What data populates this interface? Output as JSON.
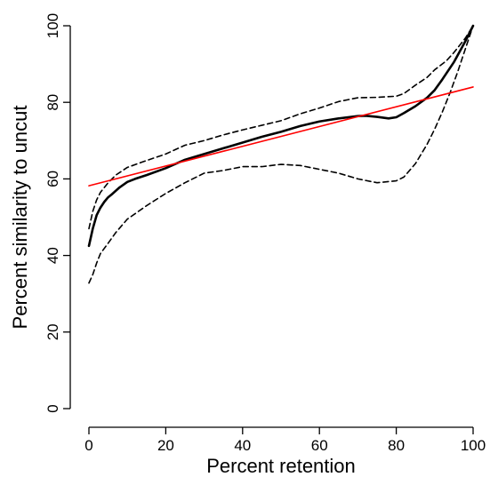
{
  "chart_data": {
    "type": "line",
    "title": "",
    "xlabel": "Percent retention",
    "ylabel": "Percent similarity to uncut",
    "xlim": [
      0,
      100
    ],
    "ylim": [
      0,
      100
    ],
    "xticks": [
      0,
      20,
      40,
      60,
      80,
      100
    ],
    "yticks": [
      0,
      20,
      40,
      60,
      80,
      100
    ],
    "x_tick_labels": [
      "0",
      "20",
      "40",
      "60",
      "80",
      "100"
    ],
    "y_tick_labels": [
      "0",
      "20",
      "40",
      "60",
      "80",
      "100"
    ],
    "grid": false,
    "legend": "none",
    "colors": {
      "axis": "#000000",
      "mean": "#000000",
      "band": "#000000",
      "fit": "#ff0000"
    },
    "series": [
      {
        "style": "solid",
        "color": "#000000",
        "x": [
          0,
          1,
          2,
          3,
          4,
          5,
          6,
          8,
          10,
          12,
          15,
          20,
          25,
          30,
          35,
          40,
          45,
          50,
          55,
          60,
          65,
          70,
          72,
          75,
          78,
          80,
          82,
          85,
          88,
          90,
          92,
          95,
          98,
          100
        ],
        "y": [
          42.5,
          47,
          50.5,
          52.5,
          54,
          55.2,
          56,
          57.8,
          59.2,
          60,
          61,
          62.8,
          65,
          66.5,
          68,
          69.5,
          71,
          72.3,
          73.8,
          75,
          75.8,
          76.4,
          76.5,
          76.2,
          75.8,
          76.1,
          77.2,
          79,
          81.2,
          83.2,
          86,
          90.5,
          96,
          100
        ]
      },
      {
        "style": "dashed",
        "color": "#000000",
        "x": [
          0,
          1,
          2,
          3,
          5,
          7,
          10,
          15,
          20,
          25,
          30,
          35,
          40,
          45,
          50,
          55,
          60,
          65,
          70,
          75,
          80,
          82,
          85,
          88,
          90,
          93,
          95,
          98,
          100
        ],
        "y": [
          47,
          51.5,
          54.5,
          56.5,
          59,
          61,
          63,
          64.8,
          66.5,
          68.8,
          70,
          71.5,
          72.8,
          74,
          75.2,
          77,
          78.5,
          80.2,
          81.2,
          81.3,
          81.6,
          82.3,
          84.5,
          86.5,
          88.5,
          90.8,
          93,
          96.8,
          100
        ]
      },
      {
        "style": "dashed",
        "color": "#000000",
        "x": [
          0,
          1,
          2,
          3,
          5,
          7,
          10,
          15,
          20,
          25,
          30,
          35,
          40,
          45,
          50,
          55,
          60,
          65,
          70,
          75,
          78,
          80,
          82,
          85,
          88,
          90,
          92,
          94,
          96,
          98,
          100
        ],
        "y": [
          32.8,
          35,
          38,
          40.5,
          43.2,
          46,
          49.5,
          53,
          56.2,
          59,
          61.5,
          62.2,
          63.2,
          63.2,
          63.8,
          63.5,
          62.5,
          61.5,
          60,
          59,
          59.3,
          59.5,
          60.5,
          64,
          69,
          73,
          77.5,
          82.5,
          88,
          94,
          100
        ]
      },
      {
        "style": "solid",
        "color": "#ff0000",
        "x": [
          0,
          100
        ],
        "y": [
          58.2,
          84
        ]
      }
    ]
  }
}
